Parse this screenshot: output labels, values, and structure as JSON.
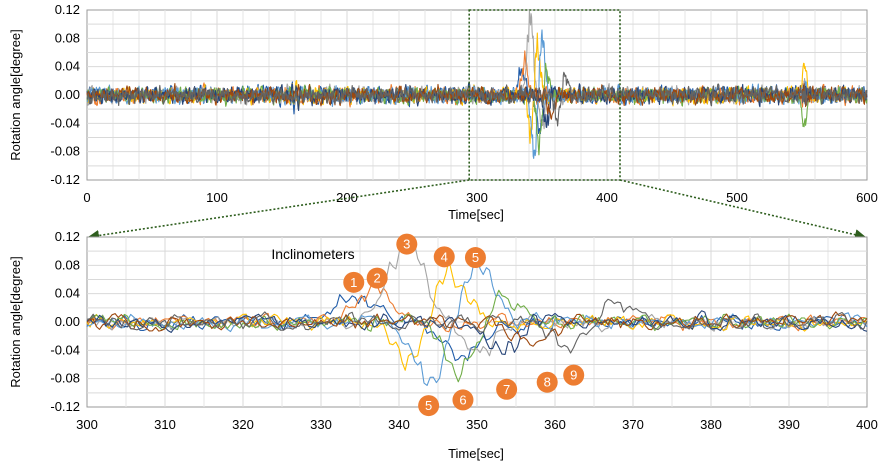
{
  "charts": [
    {
      "id": "top",
      "xlabel": "Time[sec]",
      "ylabel": "Rotation angle[degree]",
      "xlim": [
        0,
        600
      ],
      "ylim": [
        -0.12,
        0.12
      ],
      "xticks": [
        "0",
        "100",
        "200",
        "300",
        "400",
        "500",
        "600"
      ],
      "yticks": [
        "0.12",
        "0.08",
        "0.04",
        "0.00",
        "-0.04",
        "-0.08",
        "-0.12"
      ],
      "x_major_step": 100,
      "x_minor_step": 20,
      "y_step": 0.02
    },
    {
      "id": "bottom",
      "xlabel": "Time[sec]",
      "ylabel": "Rotation angle[degree]",
      "xlim": [
        300,
        400
      ],
      "ylim": [
        -0.12,
        0.12
      ],
      "xticks": [
        "300",
        "310",
        "320",
        "330",
        "340",
        "350",
        "360",
        "370",
        "380",
        "390",
        "400"
      ],
      "yticks": [
        "0.12",
        "0.08",
        "0.04",
        "0.00",
        "-0.04",
        "-0.08",
        "-0.12"
      ],
      "x_major_step": 10,
      "x_minor_step": 5,
      "y_step": 0.02
    }
  ],
  "zoom_window": {
    "x": [
      294,
      410
    ],
    "y": [
      -0.12,
      0.12
    ]
  },
  "annotation_title": "Inclinometers",
  "annotation_color": "#ED7D31",
  "markers": [
    {
      "label": "1",
      "t": 334.2,
      "v": 0.056
    },
    {
      "label": "2",
      "t": 337.2,
      "v": 0.062
    },
    {
      "label": "3",
      "t": 341.0,
      "v": 0.11
    },
    {
      "label": "4",
      "t": 345.8,
      "v": 0.092
    },
    {
      "label": "5",
      "t": 349.8,
      "v": 0.091
    },
    {
      "label": "5",
      "t": 343.8,
      "v": -0.118
    },
    {
      "label": "6",
      "t": 348.2,
      "v": -0.11
    },
    {
      "label": "7",
      "t": 353.8,
      "v": -0.095
    },
    {
      "label": "8",
      "t": 359.0,
      "v": -0.085
    },
    {
      "label": "9",
      "t": 362.4,
      "v": -0.075
    }
  ],
  "chart_data": {
    "type": "line",
    "series_colors": [
      "#1F5BA8",
      "#ED7D31",
      "#A5A5A5",
      "#FFC000",
      "#5B9BD5",
      "#70AD47",
      "#264478",
      "#9E480E",
      "#636363"
    ],
    "noise_amplitude": 0.008,
    "event_peaks": [
      {
        "inclinometer": 1,
        "t_max": 334,
        "max": 0.04,
        "t_min": 348,
        "min": -0.05
      },
      {
        "inclinometer": 2,
        "t_max": 337,
        "max": 0.06,
        "t_min": 339,
        "min": -0.01
      },
      {
        "inclinometer": 3,
        "t_max": 341,
        "max": 0.105,
        "t_min": 350,
        "min": -0.04
      },
      {
        "inclinometer": 4,
        "t_max": 346,
        "max": 0.085,
        "t_min": 342,
        "min": -0.07
      },
      {
        "inclinometer": 5,
        "t_max": 350,
        "max": 0.08,
        "t_min": 344,
        "min": -0.085
      },
      {
        "inclinometer": 6,
        "t_max": 353,
        "max": 0.04,
        "t_min": 348,
        "min": -0.075
      },
      {
        "inclinometer": 7,
        "t_max": 356,
        "max": 0.02,
        "t_min": 354,
        "min": -0.055
      },
      {
        "inclinometer": 8,
        "t_max": 360,
        "max": 0.015,
        "t_min": 358,
        "min": -0.045
      },
      {
        "inclinometer": 9,
        "t_max": 367,
        "max": 0.03,
        "t_min": 362,
        "min": -0.04
      }
    ],
    "secondary_event": {
      "t": 552,
      "max": 0.04,
      "min": -0.048
    }
  }
}
